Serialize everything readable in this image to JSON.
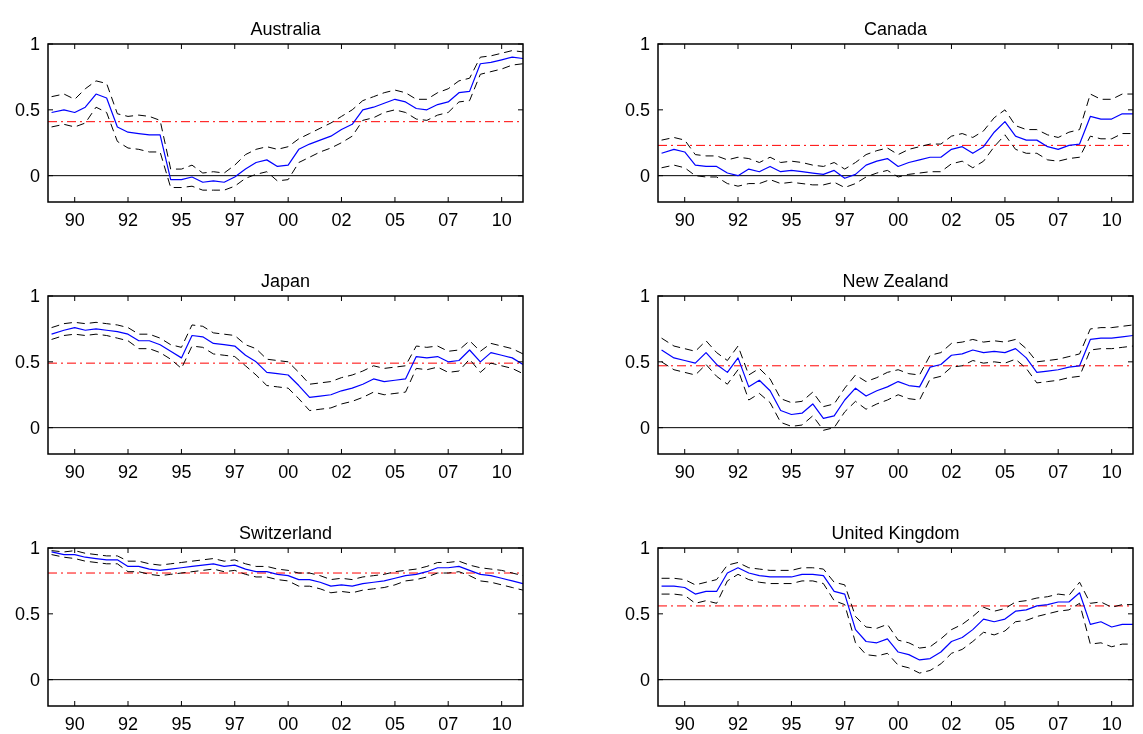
{
  "chart_data": [
    {
      "type": "line",
      "title": "Australia",
      "x": [
        "1988-12",
        "1989-07",
        "1990-01",
        "1990-07",
        "1991-01",
        "1991-07",
        "1992-01",
        "1992-07",
        "1993-01",
        "1993-07",
        "1994-01",
        "1994-07",
        "1995-01",
        "1995-07",
        "1996-01",
        "1996-07",
        "1997-01",
        "1997-07",
        "1998-01",
        "1998-07",
        "1999-01",
        "1999-07",
        "2000-01",
        "2000-07",
        "2001-01",
        "2001-07",
        "2002-01",
        "2002-07",
        "2003-01",
        "2003-07",
        "2004-01",
        "2004-07",
        "2005-01",
        "2005-07",
        "2006-01",
        "2006-07",
        "2007-01",
        "2007-07",
        "2008-01",
        "2008-07",
        "2009-01",
        "2009-07",
        "2010-01",
        "2010-07",
        "2011-01"
      ],
      "xlim": [
        "1988-10",
        "2011-01"
      ],
      "xticks": [
        {
          "value": "1990-01",
          "label": "90"
        },
        {
          "value": "1992-07",
          "label": "92"
        },
        {
          "value": "1995-01",
          "label": "95"
        },
        {
          "value": "1997-07",
          "label": "97"
        },
        {
          "value": "2000-01",
          "label": "00"
        },
        {
          "value": "2002-07",
          "label": "02"
        },
        {
          "value": "2005-01",
          "label": "05"
        },
        {
          "value": "2007-07",
          "label": "07"
        },
        {
          "value": "2010-01",
          "label": "10"
        }
      ],
      "ylim": [
        -0.2,
        1
      ],
      "yticks": [
        0,
        0.5,
        1
      ],
      "series": [
        {
          "color": "#0000ff",
          "values": [
            0.48,
            0.5,
            0.48,
            0.52,
            0.62,
            0.59,
            0.37,
            0.33,
            0.32,
            0.31,
            0.31,
            -0.03,
            -0.03,
            -0.01,
            -0.05,
            -0.04,
            -0.05,
            -0.01,
            0.05,
            0.1,
            0.12,
            0.07,
            0.08,
            0.2,
            0.24,
            0.27,
            0.3,
            0.35,
            0.39,
            0.5,
            0.52,
            0.55,
            0.58,
            0.56,
            0.51,
            0.5,
            0.54,
            0.56,
            0.63,
            0.64,
            0.85,
            0.86,
            0.88,
            0.9,
            0.89
          ]
        },
        {
          "color": "#000000",
          "line_style": "dashed",
          "values": [
            0.6,
            0.62,
            0.58,
            0.66,
            0.72,
            0.7,
            0.47,
            0.45,
            0.46,
            0.45,
            0.42,
            0.05,
            0.05,
            0.08,
            0.02,
            0.03,
            0.02,
            0.08,
            0.16,
            0.2,
            0.22,
            0.2,
            0.22,
            0.28,
            0.32,
            0.36,
            0.4,
            0.45,
            0.5,
            0.57,
            0.6,
            0.63,
            0.65,
            0.63,
            0.58,
            0.58,
            0.63,
            0.66,
            0.72,
            0.74,
            0.9,
            0.91,
            0.93,
            0.95,
            0.94
          ]
        },
        {
          "color": "#000000",
          "line_style": "dashed",
          "values": [
            0.37,
            0.39,
            0.37,
            0.4,
            0.52,
            0.48,
            0.26,
            0.21,
            0.2,
            0.18,
            0.18,
            -0.09,
            -0.09,
            -0.08,
            -0.11,
            -0.11,
            -0.11,
            -0.08,
            -0.02,
            0.01,
            0.03,
            -0.04,
            -0.03,
            0.1,
            0.14,
            0.18,
            0.21,
            0.25,
            0.3,
            0.42,
            0.44,
            0.48,
            0.5,
            0.48,
            0.43,
            0.42,
            0.46,
            0.48,
            0.56,
            0.57,
            0.77,
            0.79,
            0.81,
            0.84,
            0.85
          ]
        }
      ],
      "ref_lines": [
        {
          "axis": "y",
          "value": 0,
          "color": "#000000",
          "line_style": "solid"
        },
        {
          "axis": "y",
          "value": 0.41,
          "color": "#ff0000",
          "line_style": "dashed"
        }
      ]
    },
    {
      "type": "line",
      "title": "Canada",
      "x": [
        "1988-12",
        "1989-07",
        "1990-01",
        "1990-07",
        "1991-01",
        "1991-07",
        "1992-01",
        "1992-07",
        "1993-01",
        "1993-07",
        "1994-01",
        "1994-07",
        "1995-01",
        "1995-07",
        "1996-01",
        "1996-07",
        "1997-01",
        "1997-07",
        "1998-01",
        "1998-07",
        "1999-01",
        "1999-07",
        "2000-01",
        "2000-07",
        "2001-01",
        "2001-07",
        "2002-01",
        "2002-07",
        "2003-01",
        "2003-07",
        "2004-01",
        "2004-07",
        "2005-01",
        "2005-07",
        "2006-01",
        "2006-07",
        "2007-01",
        "2007-07",
        "2008-01",
        "2008-07",
        "2009-01",
        "2009-07",
        "2010-01",
        "2010-07",
        "2011-01"
      ],
      "xlim": [
        "1988-10",
        "2011-01"
      ],
      "xticks": [
        {
          "value": "1990-01",
          "label": "90"
        },
        {
          "value": "1992-07",
          "label": "92"
        },
        {
          "value": "1995-01",
          "label": "95"
        },
        {
          "value": "1997-07",
          "label": "97"
        },
        {
          "value": "2000-01",
          "label": "00"
        },
        {
          "value": "2002-07",
          "label": "02"
        },
        {
          "value": "2005-01",
          "label": "05"
        },
        {
          "value": "2007-07",
          "label": "07"
        },
        {
          "value": "2010-01",
          "label": "10"
        }
      ],
      "ylim": [
        -0.2,
        1
      ],
      "yticks": [
        0,
        0.5,
        1
      ],
      "series": [
        {
          "color": "#0000ff",
          "values": [
            0.17,
            0.2,
            0.18,
            0.08,
            0.07,
            0.07,
            0.02,
            0.0,
            0.05,
            0.03,
            0.07,
            0.03,
            0.04,
            0.03,
            0.02,
            0.01,
            0.04,
            -0.02,
            0.01,
            0.08,
            0.11,
            0.13,
            0.07,
            0.1,
            0.12,
            0.14,
            0.14,
            0.2,
            0.22,
            0.17,
            0.22,
            0.33,
            0.41,
            0.3,
            0.27,
            0.27,
            0.22,
            0.2,
            0.23,
            0.24,
            0.45,
            0.43,
            0.43,
            0.47,
            0.47
          ]
        },
        {
          "color": "#000000",
          "line_style": "dashed",
          "values": [
            0.27,
            0.29,
            0.27,
            0.16,
            0.15,
            0.15,
            0.12,
            0.14,
            0.13,
            0.1,
            0.14,
            0.1,
            0.11,
            0.1,
            0.08,
            0.07,
            0.1,
            0.05,
            0.1,
            0.16,
            0.19,
            0.21,
            0.16,
            0.2,
            0.22,
            0.24,
            0.24,
            0.3,
            0.32,
            0.29,
            0.34,
            0.44,
            0.5,
            0.38,
            0.35,
            0.35,
            0.31,
            0.29,
            0.33,
            0.35,
            0.62,
            0.58,
            0.58,
            0.62,
            0.62
          ]
        },
        {
          "color": "#000000",
          "line_style": "dashed",
          "values": [
            0.06,
            0.08,
            0.06,
            0.0,
            -0.01,
            -0.01,
            -0.06,
            -0.08,
            -0.06,
            -0.06,
            -0.03,
            -0.06,
            -0.05,
            -0.06,
            -0.07,
            -0.07,
            -0.05,
            -0.09,
            -0.06,
            -0.01,
            0.02,
            0.04,
            -0.01,
            0.01,
            0.02,
            0.03,
            0.03,
            0.09,
            0.11,
            0.06,
            0.11,
            0.22,
            0.31,
            0.2,
            0.17,
            0.17,
            0.12,
            0.11,
            0.13,
            0.14,
            0.3,
            0.28,
            0.28,
            0.32,
            0.32
          ]
        }
      ],
      "ref_lines": [
        {
          "axis": "y",
          "value": 0,
          "color": "#000000",
          "line_style": "solid"
        },
        {
          "axis": "y",
          "value": 0.23,
          "color": "#ff0000",
          "line_style": "dashed"
        }
      ]
    },
    {
      "type": "line",
      "title": "Japan",
      "x": [
        "1988-12",
        "1989-07",
        "1990-01",
        "1990-07",
        "1991-01",
        "1991-07",
        "1992-01",
        "1992-07",
        "1993-01",
        "1993-07",
        "1994-01",
        "1994-07",
        "1995-01",
        "1995-07",
        "1996-01",
        "1996-07",
        "1997-01",
        "1997-07",
        "1998-01",
        "1998-07",
        "1999-01",
        "1999-07",
        "2000-01",
        "2000-07",
        "2001-01",
        "2001-07",
        "2002-01",
        "2002-07",
        "2003-01",
        "2003-07",
        "2004-01",
        "2004-07",
        "2005-01",
        "2005-07",
        "2006-01",
        "2006-07",
        "2007-01",
        "2007-07",
        "2008-01",
        "2008-07",
        "2009-01",
        "2009-07",
        "2010-01",
        "2010-07",
        "2011-01"
      ],
      "xlim": [
        "1988-10",
        "2011-01"
      ],
      "xticks": [
        {
          "value": "1990-01",
          "label": "90"
        },
        {
          "value": "1992-07",
          "label": "92"
        },
        {
          "value": "1995-01",
          "label": "95"
        },
        {
          "value": "1997-07",
          "label": "97"
        },
        {
          "value": "2000-01",
          "label": "00"
        },
        {
          "value": "2002-07",
          "label": "02"
        },
        {
          "value": "2005-01",
          "label": "05"
        },
        {
          "value": "2007-07",
          "label": "07"
        },
        {
          "value": "2010-01",
          "label": "10"
        }
      ],
      "ylim": [
        -0.2,
        1
      ],
      "yticks": [
        0,
        0.5,
        1
      ],
      "series": [
        {
          "color": "#0000ff",
          "values": [
            0.71,
            0.74,
            0.76,
            0.74,
            0.75,
            0.74,
            0.73,
            0.71,
            0.66,
            0.66,
            0.63,
            0.58,
            0.53,
            0.7,
            0.69,
            0.64,
            0.63,
            0.62,
            0.55,
            0.5,
            0.42,
            0.41,
            0.4,
            0.32,
            0.23,
            0.24,
            0.25,
            0.28,
            0.3,
            0.33,
            0.37,
            0.35,
            0.36,
            0.37,
            0.54,
            0.53,
            0.54,
            0.5,
            0.51,
            0.59,
            0.5,
            0.57,
            0.55,
            0.53,
            0.48
          ]
        },
        {
          "color": "#000000",
          "line_style": "dashed",
          "values": [
            0.76,
            0.79,
            0.8,
            0.79,
            0.8,
            0.79,
            0.78,
            0.76,
            0.71,
            0.71,
            0.68,
            0.63,
            0.61,
            0.78,
            0.77,
            0.72,
            0.71,
            0.7,
            0.63,
            0.6,
            0.52,
            0.51,
            0.5,
            0.42,
            0.33,
            0.34,
            0.35,
            0.38,
            0.4,
            0.43,
            0.47,
            0.45,
            0.46,
            0.47,
            0.62,
            0.61,
            0.62,
            0.58,
            0.59,
            0.66,
            0.58,
            0.64,
            0.62,
            0.6,
            0.56
          ]
        },
        {
          "color": "#000000",
          "line_style": "dashed",
          "values": [
            0.67,
            0.7,
            0.71,
            0.7,
            0.71,
            0.7,
            0.68,
            0.66,
            0.6,
            0.6,
            0.57,
            0.52,
            0.45,
            0.62,
            0.61,
            0.56,
            0.55,
            0.54,
            0.47,
            0.4,
            0.32,
            0.31,
            0.3,
            0.22,
            0.13,
            0.14,
            0.15,
            0.18,
            0.2,
            0.23,
            0.27,
            0.25,
            0.26,
            0.27,
            0.45,
            0.44,
            0.46,
            0.42,
            0.43,
            0.52,
            0.42,
            0.49,
            0.47,
            0.45,
            0.41
          ]
        }
      ],
      "ref_lines": [
        {
          "axis": "y",
          "value": 0,
          "color": "#000000",
          "line_style": "solid"
        },
        {
          "axis": "y",
          "value": 0.49,
          "color": "#ff0000",
          "line_style": "dashed"
        }
      ]
    },
    {
      "type": "line",
      "title": "New Zealand",
      "x": [
        "1988-12",
        "1989-07",
        "1990-01",
        "1990-07",
        "1991-01",
        "1991-07",
        "1992-01",
        "1992-07",
        "1993-01",
        "1993-07",
        "1994-01",
        "1994-07",
        "1995-01",
        "1995-07",
        "1996-01",
        "1996-07",
        "1997-01",
        "1997-07",
        "1998-01",
        "1998-07",
        "1999-01",
        "1999-07",
        "2000-01",
        "2000-07",
        "2001-01",
        "2001-07",
        "2002-01",
        "2002-07",
        "2003-01",
        "2003-07",
        "2004-01",
        "2004-07",
        "2005-01",
        "2005-07",
        "2006-01",
        "2006-07",
        "2007-01",
        "2007-07",
        "2008-01",
        "2008-07",
        "2009-01",
        "2009-07",
        "2010-01",
        "2010-07",
        "2011-01"
      ],
      "xlim": [
        "1988-10",
        "2011-01"
      ],
      "xticks": [
        {
          "value": "1990-01",
          "label": "90"
        },
        {
          "value": "1992-07",
          "label": "92"
        },
        {
          "value": "1995-01",
          "label": "95"
        },
        {
          "value": "1997-07",
          "label": "97"
        },
        {
          "value": "2000-01",
          "label": "00"
        },
        {
          "value": "2002-07",
          "label": "02"
        },
        {
          "value": "2005-01",
          "label": "05"
        },
        {
          "value": "2007-07",
          "label": "07"
        },
        {
          "value": "2010-01",
          "label": "10"
        }
      ],
      "ylim": [
        -0.2,
        1
      ],
      "yticks": [
        0,
        0.5,
        1
      ],
      "series": [
        {
          "color": "#0000ff",
          "values": [
            0.59,
            0.53,
            0.51,
            0.49,
            0.57,
            0.48,
            0.42,
            0.53,
            0.31,
            0.36,
            0.28,
            0.13,
            0.1,
            0.11,
            0.18,
            0.07,
            0.09,
            0.21,
            0.3,
            0.24,
            0.28,
            0.31,
            0.35,
            0.32,
            0.31,
            0.46,
            0.48,
            0.55,
            0.56,
            0.59,
            0.57,
            0.58,
            0.57,
            0.6,
            0.53,
            0.42,
            0.43,
            0.44,
            0.46,
            0.47,
            0.67,
            0.68,
            0.68,
            0.69,
            0.7
          ]
        },
        {
          "color": "#000000",
          "line_style": "dashed",
          "values": [
            0.68,
            0.62,
            0.6,
            0.58,
            0.66,
            0.57,
            0.51,
            0.62,
            0.4,
            0.45,
            0.37,
            0.22,
            0.19,
            0.2,
            0.27,
            0.16,
            0.18,
            0.3,
            0.4,
            0.35,
            0.38,
            0.42,
            0.44,
            0.41,
            0.4,
            0.55,
            0.57,
            0.64,
            0.65,
            0.67,
            0.65,
            0.66,
            0.65,
            0.67,
            0.6,
            0.5,
            0.51,
            0.52,
            0.54,
            0.56,
            0.75,
            0.76,
            0.76,
            0.77,
            0.78
          ]
        },
        {
          "color": "#000000",
          "line_style": "dashed",
          "values": [
            0.5,
            0.44,
            0.42,
            0.4,
            0.48,
            0.39,
            0.33,
            0.44,
            0.21,
            0.26,
            0.19,
            0.04,
            0.01,
            0.02,
            0.09,
            -0.02,
            0.0,
            0.12,
            0.2,
            0.14,
            0.18,
            0.21,
            0.25,
            0.22,
            0.21,
            0.37,
            0.39,
            0.46,
            0.47,
            0.51,
            0.49,
            0.5,
            0.49,
            0.52,
            0.45,
            0.34,
            0.35,
            0.36,
            0.38,
            0.39,
            0.59,
            0.6,
            0.6,
            0.61,
            0.62
          ]
        }
      ],
      "ref_lines": [
        {
          "axis": "y",
          "value": 0,
          "color": "#000000",
          "line_style": "solid"
        },
        {
          "axis": "y",
          "value": 0.47,
          "color": "#ff0000",
          "line_style": "dashed"
        }
      ]
    },
    {
      "type": "line",
      "title": "Switzerland",
      "x": [
        "1988-12",
        "1989-07",
        "1990-01",
        "1990-07",
        "1991-01",
        "1991-07",
        "1992-01",
        "1992-07",
        "1993-01",
        "1993-07",
        "1994-01",
        "1994-07",
        "1995-01",
        "1995-07",
        "1996-01",
        "1996-07",
        "1997-01",
        "1997-07",
        "1998-01",
        "1998-07",
        "1999-01",
        "1999-07",
        "2000-01",
        "2000-07",
        "2001-01",
        "2001-07",
        "2002-01",
        "2002-07",
        "2003-01",
        "2003-07",
        "2004-01",
        "2004-07",
        "2005-01",
        "2005-07",
        "2006-01",
        "2006-07",
        "2007-01",
        "2007-07",
        "2008-01",
        "2008-07",
        "2009-01",
        "2009-07",
        "2010-01",
        "2010-07",
        "2011-01"
      ],
      "xlim": [
        "1988-10",
        "2011-01"
      ],
      "xticks": [
        {
          "value": "1990-01",
          "label": "90"
        },
        {
          "value": "1992-07",
          "label": "92"
        },
        {
          "value": "1995-01",
          "label": "95"
        },
        {
          "value": "1997-07",
          "label": "97"
        },
        {
          "value": "2000-01",
          "label": "00"
        },
        {
          "value": "2002-07",
          "label": "02"
        },
        {
          "value": "2005-01",
          "label": "05"
        },
        {
          "value": "2007-07",
          "label": "07"
        },
        {
          "value": "2010-01",
          "label": "10"
        }
      ],
      "ylim": [
        -0.2,
        1
      ],
      "yticks": [
        0,
        0.5,
        1
      ],
      "series": [
        {
          "color": "#0000ff",
          "values": [
            0.97,
            0.95,
            0.95,
            0.93,
            0.92,
            0.91,
            0.91,
            0.86,
            0.86,
            0.84,
            0.83,
            0.84,
            0.85,
            0.86,
            0.87,
            0.88,
            0.86,
            0.87,
            0.84,
            0.82,
            0.82,
            0.8,
            0.79,
            0.76,
            0.76,
            0.74,
            0.71,
            0.72,
            0.71,
            0.73,
            0.74,
            0.75,
            0.77,
            0.79,
            0.8,
            0.82,
            0.85,
            0.85,
            0.86,
            0.83,
            0.8,
            0.79,
            0.77,
            0.75,
            0.73
          ]
        },
        {
          "color": "#000000",
          "line_style": "dashed",
          "values": [
            0.98,
            0.97,
            0.98,
            0.96,
            0.95,
            0.94,
            0.94,
            0.9,
            0.9,
            0.88,
            0.87,
            0.88,
            0.89,
            0.9,
            0.91,
            0.92,
            0.9,
            0.91,
            0.88,
            0.86,
            0.86,
            0.84,
            0.83,
            0.81,
            0.81,
            0.79,
            0.76,
            0.77,
            0.76,
            0.78,
            0.79,
            0.8,
            0.82,
            0.83,
            0.84,
            0.86,
            0.89,
            0.89,
            0.9,
            0.87,
            0.85,
            0.84,
            0.83,
            0.81,
            0.79
          ]
        },
        {
          "color": "#000000",
          "line_style": "dashed",
          "values": [
            0.95,
            0.93,
            0.92,
            0.9,
            0.89,
            0.88,
            0.88,
            0.82,
            0.82,
            0.8,
            0.79,
            0.8,
            0.81,
            0.82,
            0.83,
            0.84,
            0.82,
            0.83,
            0.8,
            0.78,
            0.78,
            0.76,
            0.75,
            0.71,
            0.71,
            0.69,
            0.66,
            0.67,
            0.66,
            0.68,
            0.69,
            0.7,
            0.72,
            0.75,
            0.76,
            0.78,
            0.81,
            0.81,
            0.82,
            0.79,
            0.75,
            0.74,
            0.72,
            0.7,
            0.68
          ]
        }
      ],
      "ref_lines": [
        {
          "axis": "y",
          "value": 0,
          "color": "#000000",
          "line_style": "solid"
        },
        {
          "axis": "y",
          "value": 0.81,
          "color": "#ff0000",
          "line_style": "dashed"
        }
      ]
    },
    {
      "type": "line",
      "title": "United Kingdom",
      "x": [
        "1988-12",
        "1989-07",
        "1990-01",
        "1990-07",
        "1991-01",
        "1991-07",
        "1992-01",
        "1992-07",
        "1993-01",
        "1993-07",
        "1994-01",
        "1994-07",
        "1995-01",
        "1995-07",
        "1996-01",
        "1996-07",
        "1997-01",
        "1997-07",
        "1998-01",
        "1998-07",
        "1999-01",
        "1999-07",
        "2000-01",
        "2000-07",
        "2001-01",
        "2001-07",
        "2002-01",
        "2002-07",
        "2003-01",
        "2003-07",
        "2004-01",
        "2004-07",
        "2005-01",
        "2005-07",
        "2006-01",
        "2006-07",
        "2007-01",
        "2007-07",
        "2008-01",
        "2008-07",
        "2009-01",
        "2009-07",
        "2010-01",
        "2010-07",
        "2011-01"
      ],
      "xlim": [
        "1988-10",
        "2011-01"
      ],
      "xticks": [
        {
          "value": "1990-01",
          "label": "90"
        },
        {
          "value": "1992-07",
          "label": "92"
        },
        {
          "value": "1995-01",
          "label": "95"
        },
        {
          "value": "1997-07",
          "label": "97"
        },
        {
          "value": "2000-01",
          "label": "00"
        },
        {
          "value": "2002-07",
          "label": "02"
        },
        {
          "value": "2005-01",
          "label": "05"
        },
        {
          "value": "2007-07",
          "label": "07"
        },
        {
          "value": "2010-01",
          "label": "10"
        }
      ],
      "ylim": [
        -0.2,
        1
      ],
      "yticks": [
        0,
        0.5,
        1
      ],
      "series": [
        {
          "color": "#0000ff",
          "values": [
            0.71,
            0.71,
            0.7,
            0.65,
            0.67,
            0.67,
            0.81,
            0.85,
            0.81,
            0.79,
            0.78,
            0.78,
            0.78,
            0.8,
            0.8,
            0.79,
            0.67,
            0.65,
            0.38,
            0.29,
            0.28,
            0.31,
            0.21,
            0.19,
            0.15,
            0.16,
            0.21,
            0.29,
            0.32,
            0.38,
            0.46,
            0.44,
            0.46,
            0.52,
            0.53,
            0.56,
            0.57,
            0.59,
            0.59,
            0.66,
            0.42,
            0.44,
            0.4,
            0.42,
            0.42
          ]
        },
        {
          "color": "#000000",
          "line_style": "dashed",
          "values": [
            0.77,
            0.77,
            0.76,
            0.72,
            0.74,
            0.76,
            0.87,
            0.89,
            0.85,
            0.84,
            0.83,
            0.83,
            0.83,
            0.85,
            0.85,
            0.84,
            0.74,
            0.72,
            0.48,
            0.4,
            0.39,
            0.42,
            0.3,
            0.28,
            0.24,
            0.25,
            0.31,
            0.38,
            0.42,
            0.48,
            0.55,
            0.52,
            0.54,
            0.59,
            0.6,
            0.62,
            0.63,
            0.65,
            0.64,
            0.74,
            0.58,
            0.59,
            0.55,
            0.57,
            0.57
          ]
        },
        {
          "color": "#000000",
          "line_style": "dashed",
          "values": [
            0.65,
            0.65,
            0.64,
            0.58,
            0.6,
            0.58,
            0.75,
            0.8,
            0.76,
            0.74,
            0.73,
            0.73,
            0.73,
            0.75,
            0.75,
            0.73,
            0.6,
            0.57,
            0.28,
            0.19,
            0.18,
            0.2,
            0.11,
            0.09,
            0.05,
            0.07,
            0.12,
            0.2,
            0.23,
            0.29,
            0.36,
            0.34,
            0.37,
            0.44,
            0.45,
            0.48,
            0.5,
            0.52,
            0.53,
            0.58,
            0.27,
            0.28,
            0.25,
            0.27,
            0.27
          ]
        }
      ],
      "ref_lines": [
        {
          "axis": "y",
          "value": 0,
          "color": "#000000",
          "line_style": "solid"
        },
        {
          "axis": "y",
          "value": 0.56,
          "color": "#ff0000",
          "line_style": "dashed"
        }
      ]
    }
  ]
}
